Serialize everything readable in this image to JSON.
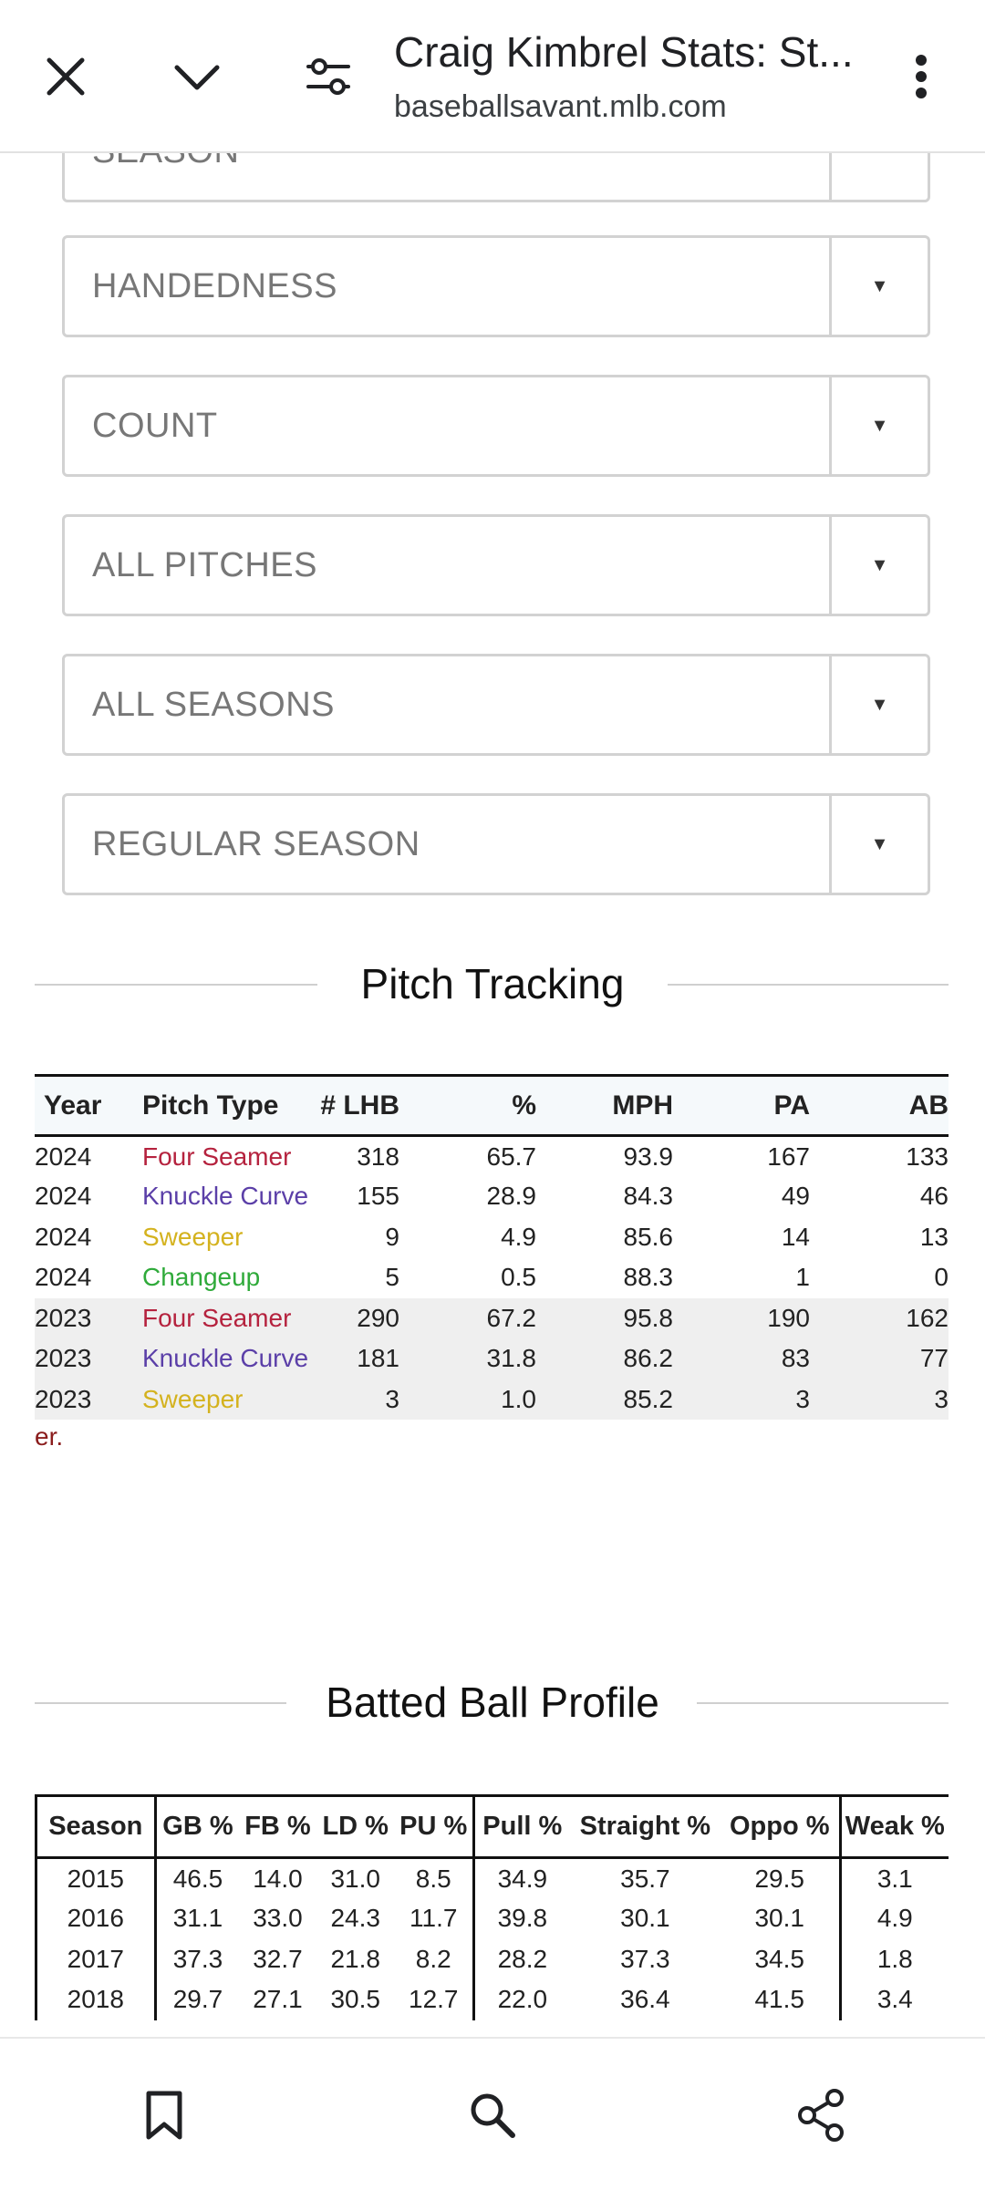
{
  "browser": {
    "title": "Craig Kimbrel Stats: St...",
    "url": "baseballsavant.mlb.com",
    "icons": [
      "close-icon",
      "chevron-down-icon",
      "page-settings-icon",
      "more-vert-icon"
    ]
  },
  "filters": {
    "partial_label": "SEASON",
    "handedness": "HANDEDNESS",
    "count": "COUNT",
    "pitches": "ALL PITCHES",
    "seasons": "ALL SEASONS",
    "season_type": "REGULAR SEASON",
    "arrow": "▼"
  },
  "pitch_tracking": {
    "title": "Pitch Tracking",
    "headers": {
      "year": "Year",
      "type": "Pitch Type",
      "lhb": "# LHB",
      "pct": "%",
      "mph": "MPH",
      "pa": "PA",
      "ab": "AB"
    },
    "colors": {
      "Four Seamer": "#b5223e",
      "Knuckle Curve": "#5b3fa8",
      "Sweeper": "#d4b21e",
      "Changeup": "#2faa3a"
    },
    "rows": [
      {
        "year": "2024",
        "type": "Four Seamer",
        "lhb": "318",
        "pct": "65.7",
        "mph": "93.9",
        "pa": "167",
        "ab": "133"
      },
      {
        "year": "2024",
        "type": "Knuckle Curve",
        "lhb": "155",
        "pct": "28.9",
        "mph": "84.3",
        "pa": "49",
        "ab": "46"
      },
      {
        "year": "2024",
        "type": "Sweeper",
        "lhb": "9",
        "pct": "4.9",
        "mph": "85.6",
        "pa": "14",
        "ab": "13"
      },
      {
        "year": "2024",
        "type": "Changeup",
        "lhb": "5",
        "pct": "0.5",
        "mph": "88.3",
        "pa": "1",
        "ab": "0"
      },
      {
        "year": "2023",
        "type": "Four Seamer",
        "lhb": "290",
        "pct": "67.2",
        "mph": "95.8",
        "pa": "190",
        "ab": "162"
      },
      {
        "year": "2023",
        "type": "Knuckle Curve",
        "lhb": "181",
        "pct": "31.8",
        "mph": "86.2",
        "pa": "83",
        "ab": "77"
      },
      {
        "year": "2023",
        "type": "Sweeper",
        "lhb": "3",
        "pct": "1.0",
        "mph": "85.2",
        "pa": "3",
        "ab": "3"
      }
    ],
    "footnote": "er."
  },
  "batted_ball": {
    "title": "Batted Ball Profile",
    "headers": {
      "season": "Season",
      "gb": "GB %",
      "fb": "FB %",
      "ld": "LD %",
      "pu": "PU %",
      "pull": "Pull %",
      "straight": "Straight %",
      "oppo": "Oppo %",
      "weak": "Weak %"
    },
    "rows": [
      {
        "season": "2015",
        "gb": "46.5",
        "fb": "14.0",
        "ld": "31.0",
        "pu": "8.5",
        "pull": "34.9",
        "straight": "35.7",
        "oppo": "29.5",
        "weak": "3.1"
      },
      {
        "season": "2016",
        "gb": "31.1",
        "fb": "33.0",
        "ld": "24.3",
        "pu": "11.7",
        "pull": "39.8",
        "straight": "30.1",
        "oppo": "30.1",
        "weak": "4.9"
      },
      {
        "season": "2017",
        "gb": "37.3",
        "fb": "32.7",
        "ld": "21.8",
        "pu": "8.2",
        "pull": "28.2",
        "straight": "37.3",
        "oppo": "34.5",
        "weak": "1.8"
      },
      {
        "season": "2018",
        "gb": "29.7",
        "fb": "27.1",
        "ld": "30.5",
        "pu": "12.7",
        "pull": "22.0",
        "straight": "36.4",
        "oppo": "41.5",
        "weak": "3.4"
      }
    ]
  },
  "bottom_bar": {
    "icons": [
      "bookmark-icon",
      "search-icon",
      "share-icon"
    ]
  }
}
